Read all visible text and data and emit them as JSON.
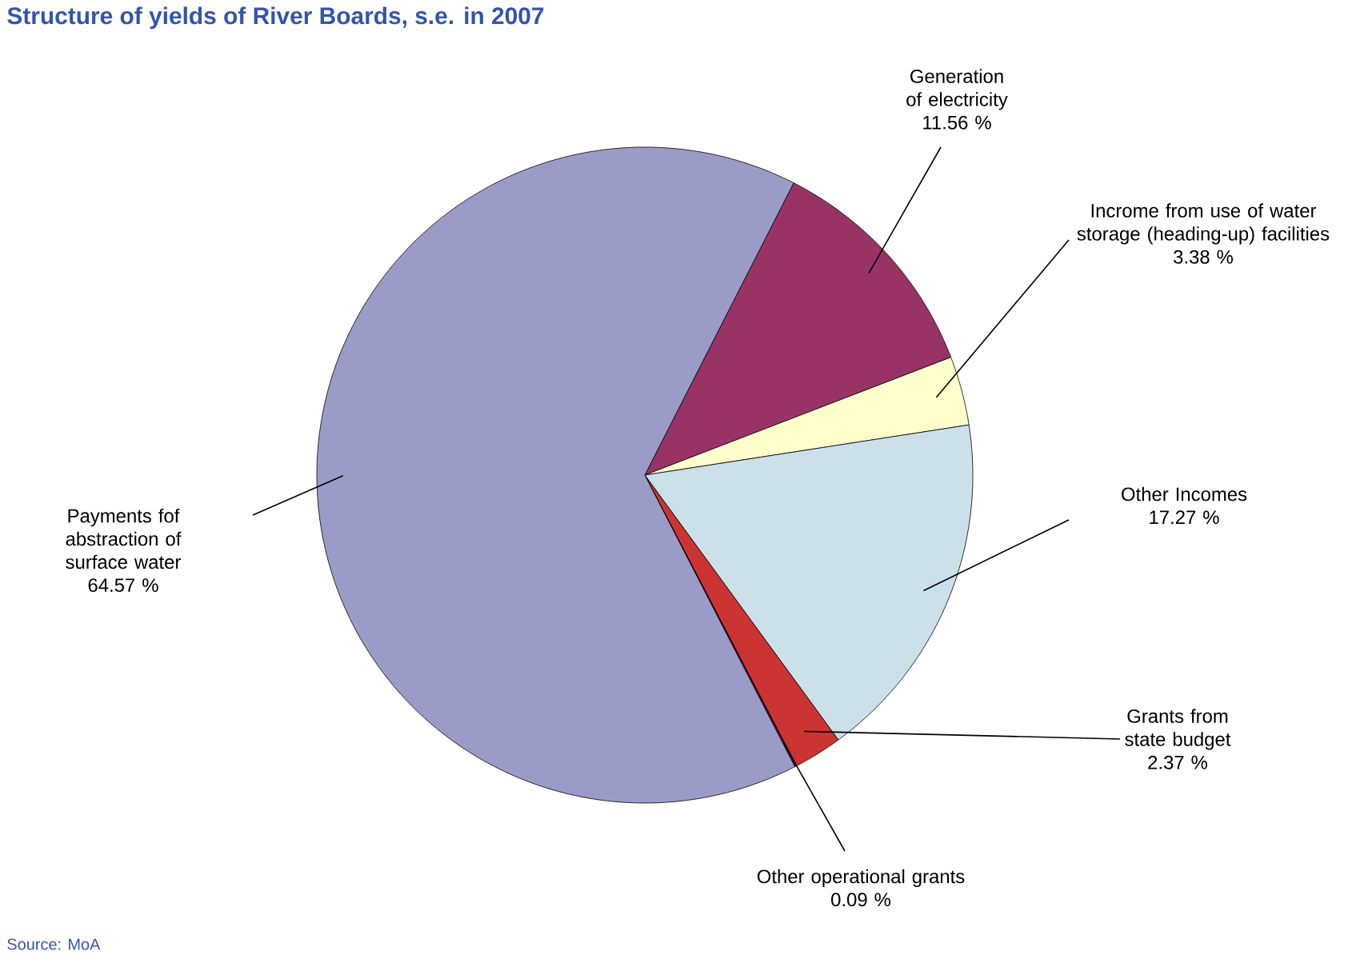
{
  "chart_data": {
    "type": "pie",
    "title": "Structure of yields of River Boards, s.e. in 2007",
    "categories": [
      "Generation of electricity",
      "Incrome from use of water storage (heading-up) facilities",
      "Other Incomes",
      "Grants from state budget",
      "Other operational grants",
      "Payments fof abstraction of surface water"
    ],
    "values": [
      11.56,
      3.38,
      17.27,
      2.37,
      0.09,
      64.57
    ],
    "value_labels": [
      "11.56 %",
      "3.38 %",
      "17.27 %",
      "2.37 %",
      "0.09 %",
      "64.57 %"
    ],
    "colors": [
      "#993366",
      "#ffffcc",
      "#cce0ea",
      "#cc3333",
      "#660033",
      "#9b9bc8"
    ],
    "annotations": [
      "Source: MoA"
    ]
  }
}
